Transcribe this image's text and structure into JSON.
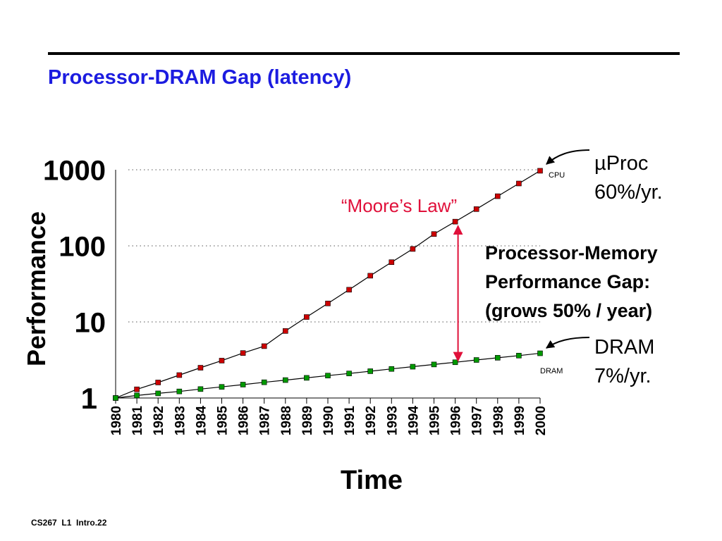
{
  "slide": {
    "title": "Processor-DRAM Gap (latency)",
    "footer": "CS267  L1  Intro.22"
  },
  "chart_data": {
    "type": "line",
    "xlabel": "Time",
    "ylabel": "Performance",
    "yscale": "log",
    "ylim": [
      1,
      1000
    ],
    "yticks": [
      "1",
      "10",
      "100",
      "1000"
    ],
    "x": [
      "1980",
      "1981",
      "1982",
      "1983",
      "1984",
      "1985",
      "1986",
      "1987",
      "1988",
      "1989",
      "1990",
      "1991",
      "1992",
      "1993",
      "1994",
      "1995",
      "1996",
      "1997",
      "1998",
      "1999",
      "2000"
    ],
    "gridlines": "dotted at 10, 100, 1000",
    "series": [
      {
        "name": "CPU",
        "color": "#cc0000",
        "values": [
          1,
          1.3,
          1.6,
          2.0,
          2.5,
          3.1,
          3.9,
          4.8,
          7.6,
          11.6,
          17.5,
          26.5,
          40.5,
          61,
          91,
          143,
          208,
          304,
          449,
          660,
          970
        ]
      },
      {
        "name": "DRAM",
        "color": "#009900",
        "values": [
          1,
          1.08,
          1.15,
          1.22,
          1.31,
          1.4,
          1.5,
          1.61,
          1.72,
          1.84,
          1.97,
          2.1,
          2.25,
          2.41,
          2.58,
          2.76,
          2.95,
          3.16,
          3.38,
          3.61,
          3.87
        ]
      }
    ],
    "annotations": {
      "cpu_tag": "CPU",
      "dram_tag": "DRAM",
      "proc_label_line1": "µProc",
      "proc_label_line2": "60%/yr.",
      "dram_label_line1": "DRAM",
      "dram_label_line2": "7%/yr.",
      "moores_law": "“Moore’s Law”",
      "gap_line1": "Processor-Memory",
      "gap_line2": "Performance Gap:",
      "gap_line3": "(grows 50% / year)"
    },
    "gap_arrow_year": "1996",
    "arrow_color": "#e0103a",
    "moores_law_color": "#e0103a"
  }
}
